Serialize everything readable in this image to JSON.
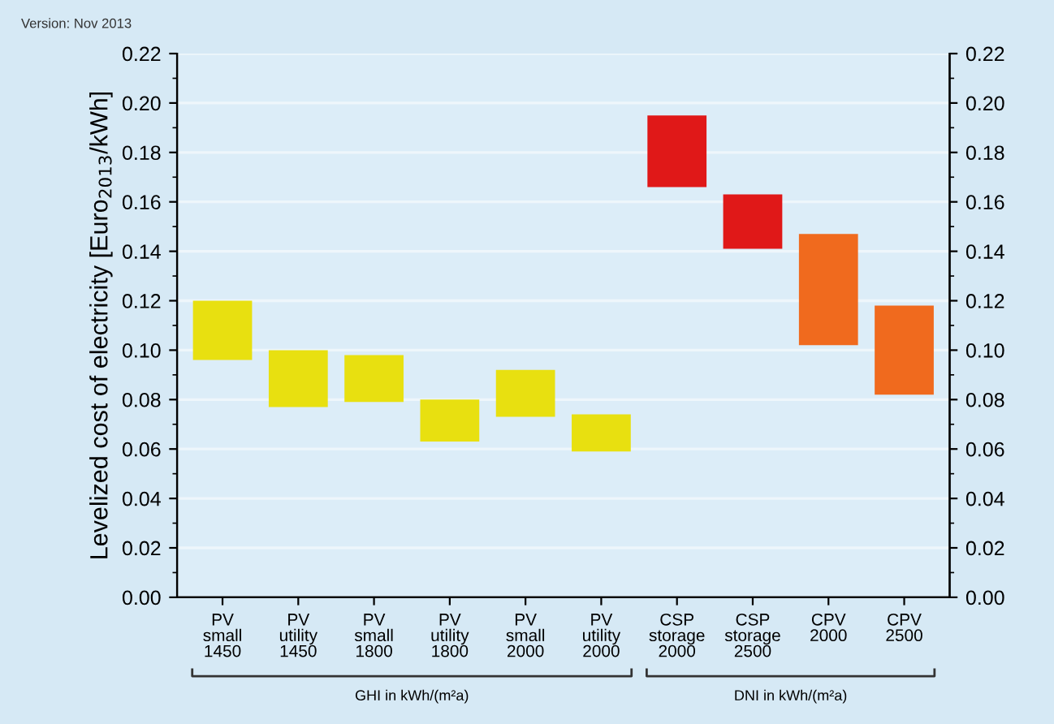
{
  "chart_data": {
    "type": "bar",
    "categories": [
      "PV\nsmall\n1450",
      "PV\nutility\n1450",
      "PV\nsmall\n1800",
      "PV\nutility\n1800",
      "PV\nsmall\n2000",
      "PV\nutility\n2000",
      "CSP\nstorage\n2000",
      "CSP\nstorage\n2500",
      "CPV\n2000",
      "CPV\n2500"
    ],
    "base": [
      0.096,
      0.077,
      0.079,
      0.063,
      0.073,
      0.059,
      0.166,
      0.141,
      0.102,
      0.082
    ],
    "values": [
      0.024,
      0.023,
      0.019,
      0.017,
      0.019,
      0.015,
      0.029,
      0.022,
      0.045,
      0.036
    ],
    "colors": [
      "#e8e010",
      "#e8e010",
      "#e8e010",
      "#e8e010",
      "#e8e010",
      "#e8e010",
      "#e01818",
      "#e01818",
      "#f06a1e",
      "#f06a1e"
    ],
    "ylabel": "Levelized cost of electricity [Euro$_{2013}$/kWh]",
    "ylim": [
      0,
      0.22
    ],
    "yticks": [
      {
        "value": 0,
        "label": "0.00"
      },
      {
        "value": 0.02,
        "label": "0.02"
      },
      {
        "value": 0.04,
        "label": "0.04"
      },
      {
        "value": 0.06,
        "label": "0.06"
      },
      {
        "value": 0.08,
        "label": "0.08"
      },
      {
        "value": 0.1,
        "label": "0.10"
      },
      {
        "value": 0.12,
        "label": "0.12"
      },
      {
        "value": 0.14,
        "label": "0.14"
      },
      {
        "value": 0.16,
        "label": "0.16"
      },
      {
        "value": 0.18,
        "label": "0.18"
      },
      {
        "value": 0.2,
        "label": "0.20"
      },
      {
        "value": 0.22,
        "label": "0.22"
      }
    ],
    "y2lim": [
      0,
      0.22
    ],
    "y2ticks": [
      {
        "value": 0,
        "label": "0.00"
      },
      {
        "value": 0.02,
        "label": "0.02"
      },
      {
        "value": 0.04,
        "label": "0.04"
      },
      {
        "value": 0.06,
        "label": "0.06"
      },
      {
        "value": 0.08,
        "label": "0.08"
      },
      {
        "value": 0.1,
        "label": "0.10"
      },
      {
        "value": 0.12,
        "label": "0.12"
      },
      {
        "value": 0.14,
        "label": "0.14"
      },
      {
        "value": 0.16,
        "label": "0.16"
      },
      {
        "value": 0.18,
        "label": "0.18"
      },
      {
        "value": 0.2,
        "label": "0.20"
      },
      {
        "value": 0.22,
        "label": "0.22"
      }
    ],
    "grid": "y",
    "annotations": [
      "Version: Nov 2013",
      "GHI in kWh/(m²a)",
      "DNI in kWh/(m²a)"
    ]
  }
}
